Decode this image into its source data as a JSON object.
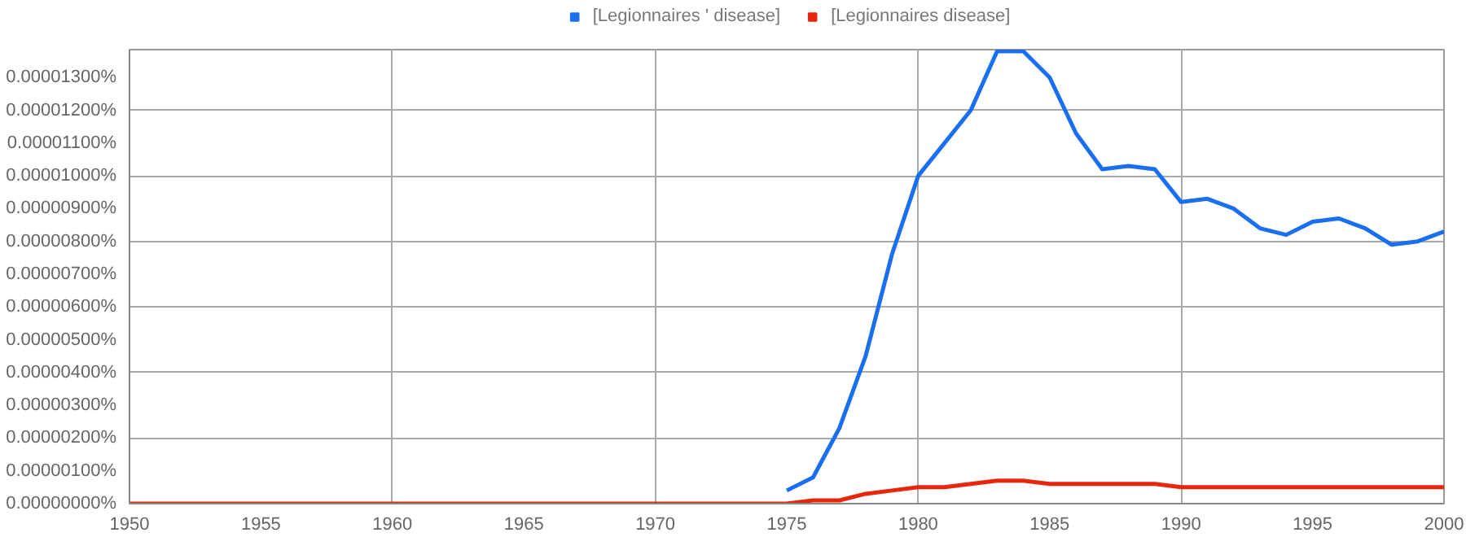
{
  "chart_data": {
    "type": "line",
    "x": [
      1950,
      1951,
      1952,
      1953,
      1954,
      1955,
      1956,
      1957,
      1958,
      1959,
      1960,
      1961,
      1962,
      1963,
      1964,
      1965,
      1966,
      1967,
      1968,
      1969,
      1970,
      1971,
      1972,
      1973,
      1974,
      1975,
      1976,
      1977,
      1978,
      1979,
      1980,
      1981,
      1982,
      1983,
      1984,
      1985,
      1986,
      1987,
      1988,
      1989,
      1990,
      1991,
      1992,
      1993,
      1994,
      1995,
      1996,
      1997,
      1998,
      1999,
      2000
    ],
    "series": [
      {
        "name": "[Legionnaires ' disease]",
        "color": "#1a6ff0",
        "values": [
          null,
          null,
          null,
          null,
          null,
          null,
          null,
          null,
          null,
          null,
          null,
          null,
          null,
          null,
          null,
          null,
          null,
          null,
          null,
          null,
          null,
          null,
          null,
          null,
          null,
          4e-07,
          8e-07,
          2.3e-06,
          4.5e-06,
          7.6e-06,
          1e-05,
          1.1e-05,
          1.2e-05,
          1.38e-05,
          1.38e-05,
          1.3e-05,
          1.13e-05,
          1.02e-05,
          1.03e-05,
          1.02e-05,
          9.2e-06,
          9.3e-06,
          9e-06,
          8.4e-06,
          8.2e-06,
          8.6e-06,
          8.7e-06,
          8.4e-06,
          7.9e-06,
          8e-06,
          8.3e-06
        ]
      },
      {
        "name": "[Legionnaires disease]",
        "color": "#e8260c",
        "values": [
          0,
          0,
          0,
          0,
          0,
          0,
          0,
          0,
          0,
          0,
          0,
          0,
          0,
          0,
          0,
          0,
          0,
          0,
          0,
          0,
          0,
          0,
          0,
          0,
          0,
          0,
          1e-07,
          1e-07,
          3e-07,
          4e-07,
          5e-07,
          5e-07,
          6e-07,
          7e-07,
          7e-07,
          6e-07,
          6e-07,
          6e-07,
          6e-07,
          6e-07,
          5e-07,
          5e-07,
          5e-07,
          5e-07,
          5e-07,
          5e-07,
          5e-07,
          5e-07,
          5e-07,
          5e-07,
          5e-07
        ]
      }
    ],
    "xlim": [
      1950,
      2000
    ],
    "xticks": [
      1950,
      1955,
      1960,
      1965,
      1970,
      1975,
      1980,
      1985,
      1990,
      1995,
      2000
    ],
    "ylim": [
      0,
      1.385e-05
    ],
    "yticks": [
      {
        "value": 0,
        "label": "0.00000000%"
      },
      {
        "value": 1e-06,
        "label": "0.00000100%"
      },
      {
        "value": 2e-06,
        "label": "0.00000200%"
      },
      {
        "value": 3e-06,
        "label": "0.00000300%"
      },
      {
        "value": 4e-06,
        "label": "0.00000400%"
      },
      {
        "value": 5e-06,
        "label": "0.00000500%"
      },
      {
        "value": 6e-06,
        "label": "0.00000600%"
      },
      {
        "value": 7e-06,
        "label": "0.00000700%"
      },
      {
        "value": 8e-06,
        "label": "0.00000800%"
      },
      {
        "value": 9e-06,
        "label": "0.00000900%"
      },
      {
        "value": 1e-05,
        "label": "0.00001000%"
      },
      {
        "value": 1.1e-05,
        "label": "0.00001100%"
      },
      {
        "value": 1.2e-05,
        "label": "0.00001200%"
      },
      {
        "value": 1.3e-05,
        "label": "0.00001300%"
      }
    ],
    "grid": true,
    "legend": "top",
    "marker": "none",
    "line_style": "solid"
  }
}
